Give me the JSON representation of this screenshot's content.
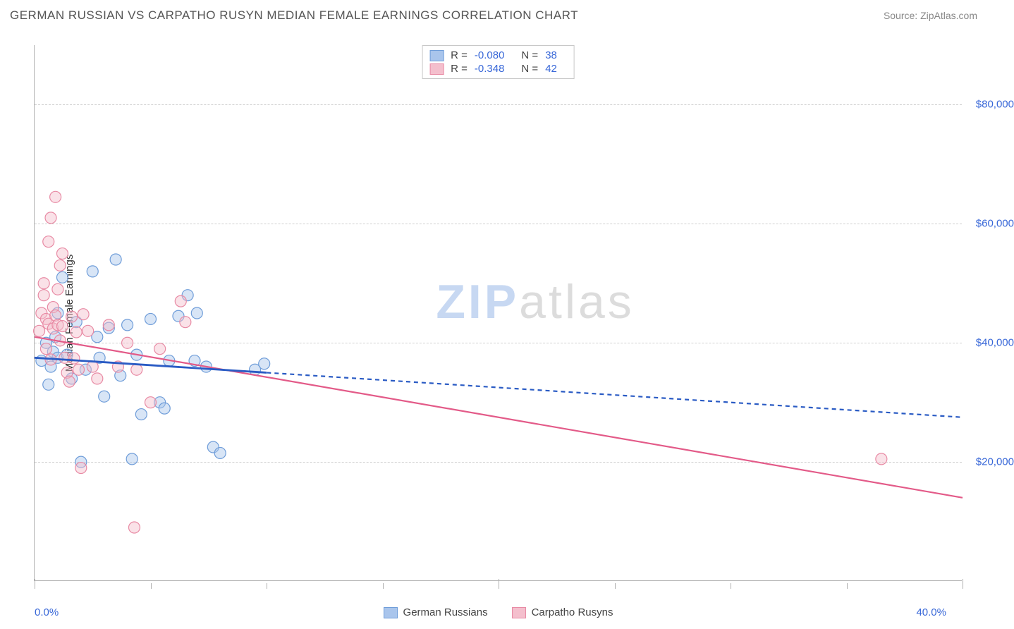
{
  "header": {
    "title": "GERMAN RUSSIAN VS CARPATHO RUSYN MEDIAN FEMALE EARNINGS CORRELATION CHART",
    "source": "Source: ZipAtlas.com"
  },
  "chart": {
    "type": "scatter",
    "ylabel": "Median Female Earnings",
    "xlim": [
      0,
      40
    ],
    "ylim": [
      0,
      90000
    ],
    "ytick_values": [
      20000,
      40000,
      60000,
      80000
    ],
    "ytick_labels": [
      "$20,000",
      "$40,000",
      "$60,000",
      "$80,000"
    ],
    "xtick_major": [
      0,
      20,
      40
    ],
    "xtick_minor": [
      5,
      10,
      15,
      25,
      30,
      35
    ],
    "xtick_labels": {
      "left": "0.0%",
      "right": "40.0%"
    },
    "grid_color": "#d0d0d0",
    "marker_radius": 8,
    "marker_fill_opacity": 0.45,
    "marker_stroke_width": 1.2,
    "line_width": 2.2,
    "background_color": "#ffffff",
    "watermark": {
      "part1": "ZIP",
      "part2": "atlas"
    },
    "series": [
      {
        "id": "blue",
        "label": "German Russians",
        "r_value": "-0.080",
        "n_value": "38",
        "color_fill": "#a9c5ec",
        "color_stroke": "#6f9dd9",
        "line_color": "#2a5bc4",
        "line_dash": "6,5",
        "trend": {
          "x1": 0,
          "y1": 37500,
          "x2": 40,
          "y2": 27500
        },
        "points": [
          [
            0.3,
            37000
          ],
          [
            0.5,
            40000
          ],
          [
            0.6,
            33000
          ],
          [
            0.7,
            36000
          ],
          [
            0.8,
            38500
          ],
          [
            0.9,
            41000
          ],
          [
            1.0,
            45000
          ],
          [
            1.0,
            37500
          ],
          [
            1.2,
            51000
          ],
          [
            1.4,
            38000
          ],
          [
            1.6,
            34000
          ],
          [
            1.8,
            43500
          ],
          [
            2.0,
            20000
          ],
          [
            2.2,
            35500
          ],
          [
            2.5,
            52000
          ],
          [
            2.7,
            41000
          ],
          [
            2.8,
            37500
          ],
          [
            3.0,
            31000
          ],
          [
            3.2,
            42500
          ],
          [
            3.5,
            54000
          ],
          [
            3.7,
            34500
          ],
          [
            4.0,
            43000
          ],
          [
            4.2,
            20500
          ],
          [
            4.4,
            38000
          ],
          [
            4.6,
            28000
          ],
          [
            5.0,
            44000
          ],
          [
            5.4,
            30000
          ],
          [
            5.6,
            29000
          ],
          [
            5.8,
            37000
          ],
          [
            6.2,
            44500
          ],
          [
            6.6,
            48000
          ],
          [
            7.0,
            45000
          ],
          [
            7.4,
            36000
          ],
          [
            7.7,
            22500
          ],
          [
            8.0,
            21500
          ],
          [
            9.5,
            35500
          ],
          [
            9.9,
            36500
          ],
          [
            6.9,
            37000
          ]
        ]
      },
      {
        "id": "pink",
        "label": "Carpatho Rusyns",
        "r_value": "-0.348",
        "n_value": "42",
        "color_fill": "#f4bfcd",
        "color_stroke": "#e88aa4",
        "line_color": "#e35a88",
        "line_dash": "",
        "trend": {
          "x1": 0,
          "y1": 41000,
          "x2": 40,
          "y2": 14000
        },
        "points": [
          [
            0.2,
            42000
          ],
          [
            0.3,
            45000
          ],
          [
            0.4,
            48000
          ],
          [
            0.4,
            50000
          ],
          [
            0.5,
            44000
          ],
          [
            0.5,
            39000
          ],
          [
            0.6,
            43200
          ],
          [
            0.6,
            57000
          ],
          [
            0.7,
            61000
          ],
          [
            0.7,
            37200
          ],
          [
            0.8,
            46000
          ],
          [
            0.8,
            42400
          ],
          [
            0.9,
            64500
          ],
          [
            0.9,
            44600
          ],
          [
            1.0,
            49000
          ],
          [
            1.0,
            43000
          ],
          [
            1.1,
            40400
          ],
          [
            1.1,
            53000
          ],
          [
            1.2,
            55000
          ],
          [
            1.2,
            42800
          ],
          [
            1.3,
            37500
          ],
          [
            1.4,
            35000
          ],
          [
            1.5,
            33500
          ],
          [
            1.6,
            44400
          ],
          [
            1.7,
            37400
          ],
          [
            1.8,
            41800
          ],
          [
            1.9,
            35500
          ],
          [
            2.0,
            19000
          ],
          [
            2.1,
            44800
          ],
          [
            2.3,
            42000
          ],
          [
            2.5,
            36000
          ],
          [
            2.7,
            34000
          ],
          [
            3.2,
            43000
          ],
          [
            3.6,
            36000
          ],
          [
            4.0,
            40000
          ],
          [
            4.3,
            9000
          ],
          [
            4.4,
            35500
          ],
          [
            5.0,
            30000
          ],
          [
            5.4,
            39000
          ],
          [
            6.3,
            47000
          ],
          [
            6.5,
            43500
          ],
          [
            36.5,
            20500
          ]
        ]
      }
    ]
  },
  "stats_legend": {
    "r_label": "R =",
    "n_label": "N ="
  }
}
